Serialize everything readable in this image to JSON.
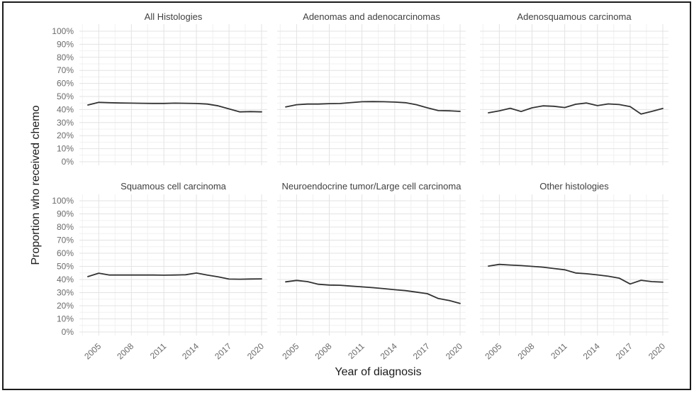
{
  "figure": {
    "colors": {
      "background": "#ffffff",
      "line": "#333333",
      "grid_major": "#e3e3e3",
      "grid_minor": "#f1f1f1",
      "tick_text": "#6b6b6b",
      "facet_title_text": "#404040",
      "axis_title_text": "#1a1a1a",
      "border": "#1c1c1c"
    }
  },
  "chart_data": {
    "type": "line",
    "layout": "faceted 2 rows x 3 cols, shared axes",
    "title": "",
    "xlabel": "Year of diagnosis",
    "ylabel": "Proportion who received chemo",
    "grid": "major and minor, light gray on white",
    "legend_position": "none",
    "xlim": [
      2003.2,
      2020.8
    ],
    "ylim": [
      0,
      100
    ],
    "x": [
      2004,
      2005,
      2006,
      2007,
      2008,
      2009,
      2010,
      2011,
      2012,
      2013,
      2014,
      2015,
      2016,
      2017,
      2018,
      2019,
      2020
    ],
    "x_ticks": [
      2005,
      2008,
      2011,
      2014,
      2017,
      2020
    ],
    "x_tick_labels": [
      "2005",
      "2008",
      "2011",
      "2014",
      "2017",
      "2020"
    ],
    "x_minor_breaks": [
      2003.5,
      2006.5,
      2009.5,
      2012.5,
      2015.5,
      2018.5
    ],
    "y_ticks": [
      0,
      10,
      20,
      30,
      40,
      50,
      60,
      70,
      80,
      90,
      100
    ],
    "y_tick_labels": [
      "0%",
      "10%",
      "20%",
      "30%",
      "40%",
      "50%",
      "60%",
      "70%",
      "80%",
      "90%",
      "100%"
    ],
    "facets": [
      {
        "title": "All Histologies",
        "values": [
          43.5,
          45.5,
          45.2,
          45.0,
          44.9,
          44.8,
          44.7,
          44.7,
          44.9,
          44.8,
          44.6,
          44.2,
          42.8,
          40.5,
          38.2,
          38.4,
          38.2
        ]
      },
      {
        "title": "Adenomas and adenocarcinomas",
        "values": [
          42.0,
          43.7,
          44.2,
          44.2,
          44.5,
          44.6,
          45.3,
          46.0,
          46.1,
          46.0,
          45.7,
          45.2,
          43.7,
          41.3,
          39.2,
          39.0,
          38.6
        ]
      },
      {
        "title": "Adenosquamous carcinoma",
        "values": [
          37.5,
          39.0,
          41.0,
          38.5,
          41.3,
          42.8,
          42.5,
          41.5,
          44.0,
          45.0,
          43.0,
          44.3,
          43.8,
          42.3,
          36.6,
          38.6,
          40.8
        ]
      },
      {
        "title": "Squamous cell carcinoma",
        "values": [
          42.2,
          44.8,
          43.4,
          43.4,
          43.4,
          43.4,
          43.4,
          43.3,
          43.4,
          43.6,
          44.9,
          43.4,
          42.0,
          40.3,
          40.2,
          40.4,
          40.5
        ]
      },
      {
        "title": "Neuroendocrine tumor/Large cell carcinoma",
        "values": [
          38.2,
          39.3,
          38.4,
          36.4,
          35.8,
          35.6,
          35.0,
          34.4,
          33.8,
          33.0,
          32.2,
          31.5,
          30.4,
          29.2,
          25.5,
          24.0,
          21.8
        ]
      },
      {
        "title": "Other histologies",
        "values": [
          50.2,
          51.5,
          51.0,
          50.6,
          50.0,
          49.4,
          48.4,
          47.4,
          45.0,
          44.4,
          43.5,
          42.5,
          41.0,
          36.6,
          39.4,
          38.4,
          38.0
        ]
      }
    ]
  }
}
